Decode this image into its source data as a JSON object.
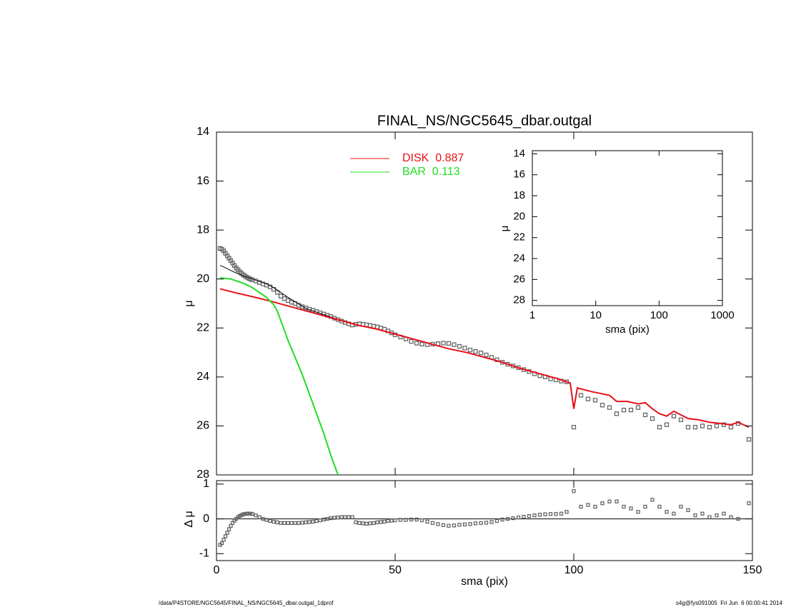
{
  "footer_left": "/data/P4STORE/NGC5645/FINAL_NS/NGC5645_dbar.outgal_1dprof",
  "footer_right": "s4g@fys091005  Fri Jun  6 00:00:41 2014",
  "chart_data": [
    {
      "type": "scatter",
      "title": "FINAL_NS/NGC5645_dbar.outgal",
      "ylabel": "μ",
      "xlim": [
        0,
        150
      ],
      "ylim": [
        28,
        14
      ],
      "yticks": [
        14,
        16,
        18,
        20,
        22,
        24,
        26,
        28
      ],
      "legend": "top",
      "series": [
        {
          "style": "markers",
          "marker": "square",
          "color": "#666666",
          "x": [
            1,
            1.5,
            2,
            2.5,
            3,
            3.5,
            4,
            4.5,
            5,
            5.5,
            6,
            6.5,
            7,
            7.5,
            8,
            8.5,
            9,
            9.5,
            10,
            11,
            12,
            13,
            14,
            15,
            16,
            17,
            18,
            19,
            20,
            21,
            22,
            23,
            24,
            25,
            26,
            27,
            28,
            29,
            30,
            31,
            32,
            33,
            34,
            35,
            36,
            37,
            38,
            39,
            40,
            41,
            42,
            43,
            44,
            45,
            46,
            47,
            48,
            49,
            50,
            51.5,
            53,
            54.5,
            56,
            57.5,
            59,
            60.5,
            62,
            63.5,
            65,
            66.5,
            68,
            69.5,
            71,
            72.5,
            74,
            75.5,
            77,
            78.5,
            80,
            81.5,
            83,
            84.5,
            86,
            87.5,
            89,
            90.5,
            92,
            93.5,
            95,
            96.5,
            98,
            100,
            102,
            104,
            106,
            108,
            110,
            112,
            114,
            116,
            118,
            120,
            122,
            124,
            126,
            128,
            130,
            132,
            134,
            136,
            138,
            140,
            142,
            144,
            146,
            149
          ],
          "values": [
            18.75,
            18.78,
            18.85,
            18.95,
            19.05,
            19.15,
            19.25,
            19.35,
            19.45,
            19.55,
            19.62,
            19.7,
            19.77,
            19.83,
            19.88,
            19.93,
            19.97,
            20.0,
            20.03,
            20.08,
            20.14,
            20.2,
            20.25,
            20.32,
            20.42,
            20.55,
            20.7,
            20.8,
            20.88,
            20.95,
            21.0,
            21.07,
            21.13,
            21.18,
            21.23,
            21.28,
            21.33,
            21.38,
            21.43,
            21.48,
            21.53,
            21.6,
            21.66,
            21.72,
            21.78,
            21.83,
            21.88,
            21.85,
            21.83,
            21.85,
            21.87,
            21.9,
            21.93,
            21.96,
            22.0,
            22.05,
            22.12,
            22.2,
            22.28,
            22.37,
            22.45,
            22.55,
            22.62,
            22.66,
            22.68,
            22.66,
            22.64,
            22.62,
            22.63,
            22.68,
            22.75,
            22.82,
            22.9,
            22.96,
            23.02,
            23.1,
            23.2,
            23.3,
            23.4,
            23.48,
            23.55,
            23.62,
            23.7,
            23.78,
            23.87,
            23.95,
            24.0,
            24.08,
            24.12,
            24.17,
            24.2,
            26.05,
            24.75,
            24.9,
            24.95,
            25.15,
            25.25,
            25.5,
            25.35,
            25.35,
            25.25,
            25.55,
            25.7,
            26.05,
            25.95,
            25.6,
            25.75,
            26.05,
            26.05,
            26.0,
            26.05,
            26.0,
            25.95,
            26.05,
            25.9,
            26.55
          ]
        },
        {
          "style": "line",
          "color": "#000000",
          "x": [
            1,
            2,
            3,
            4,
            5,
            6,
            8,
            10,
            12,
            14,
            16,
            18,
            20,
            25,
            30,
            35,
            40
          ],
          "values": [
            19.45,
            19.5,
            19.58,
            19.65,
            19.72,
            19.78,
            19.9,
            20.0,
            20.1,
            20.2,
            20.35,
            20.55,
            20.75,
            21.2,
            21.45,
            21.7,
            21.9
          ]
        },
        {
          "style": "line",
          "name": "DISK  0.887",
          "color": "#e8101a",
          "x": [
            1,
            5,
            10,
            15,
            20,
            25,
            30,
            35,
            40,
            45,
            50,
            55,
            60,
            65,
            70,
            75,
            80,
            85,
            90,
            95,
            99,
            100,
            101,
            105,
            110,
            112,
            115,
            118,
            120,
            122,
            124,
            126,
            128,
            130,
            132,
            135,
            138,
            141,
            144,
            146,
            149
          ],
          "values": [
            20.4,
            20.55,
            20.72,
            20.9,
            21.1,
            21.3,
            21.5,
            21.7,
            21.9,
            22.05,
            22.25,
            22.45,
            22.65,
            22.85,
            23.0,
            23.2,
            23.4,
            23.65,
            23.85,
            24.05,
            24.25,
            25.3,
            24.45,
            24.6,
            24.75,
            25.0,
            25.0,
            25.1,
            25.05,
            25.3,
            25.5,
            25.6,
            25.4,
            25.55,
            25.7,
            25.75,
            25.85,
            25.9,
            25.95,
            25.85,
            26.05
          ]
        },
        {
          "style": "line",
          "name": "BAR  0.113",
          "color": "#22dd22",
          "x": [
            1,
            4,
            8,
            10,
            12,
            14,
            16,
            17,
            18,
            19,
            20,
            22,
            24,
            26,
            28,
            30,
            32,
            34
          ],
          "values": [
            19.95,
            20.0,
            20.2,
            20.35,
            20.55,
            20.75,
            21.05,
            21.3,
            21.7,
            22.1,
            22.5,
            23.2,
            23.9,
            24.7,
            25.5,
            26.3,
            27.2,
            28.0
          ]
        }
      ]
    },
    {
      "type": "scatter",
      "xlabel": "sma (pix)",
      "ylabel": "Δ μ",
      "xlim": [
        0,
        150
      ],
      "xticks": [
        0,
        50,
        100,
        150
      ],
      "ylim": [
        -1.2,
        1.1
      ],
      "yticks": [
        -1,
        0,
        1
      ],
      "marker": "square",
      "color": "#666666",
      "x": [
        1,
        1.5,
        2,
        2.5,
        3,
        3.5,
        4,
        4.5,
        5,
        5.5,
        6,
        6.5,
        7,
        7.5,
        8,
        8.5,
        9,
        9.5,
        10,
        11,
        12,
        13,
        14,
        15,
        16,
        17,
        18,
        19,
        20,
        21,
        22,
        23,
        24,
        25,
        26,
        27,
        28,
        29,
        30,
        31,
        32,
        33,
        34,
        35,
        36,
        37,
        38,
        39,
        40,
        41,
        42,
        43,
        44,
        45,
        46,
        47,
        48,
        49,
        50,
        51.5,
        53,
        54.5,
        56,
        57.5,
        59,
        60.5,
        62,
        63.5,
        65,
        66.5,
        68,
        69.5,
        71,
        72.5,
        74,
        75.5,
        77,
        78.5,
        80,
        81.5,
        83,
        84.5,
        86,
        87.5,
        89,
        90.5,
        92,
        93.5,
        95,
        96.5,
        98,
        100,
        102,
        104,
        106,
        108,
        110,
        112,
        114,
        116,
        118,
        120,
        122,
        124,
        126,
        128,
        130,
        132,
        134,
        136,
        138,
        140,
        142,
        144,
        146,
        149
      ],
      "values": [
        -0.75,
        -0.7,
        -0.6,
        -0.5,
        -0.4,
        -0.3,
        -0.2,
        -0.12,
        -0.05,
        0.0,
        0.05,
        0.08,
        0.11,
        0.13,
        0.14,
        0.15,
        0.15,
        0.15,
        0.14,
        0.1,
        0.05,
        0.0,
        -0.03,
        -0.06,
        -0.08,
        -0.1,
        -0.12,
        -0.12,
        -0.12,
        -0.12,
        -0.12,
        -0.12,
        -0.11,
        -0.1,
        -0.09,
        -0.08,
        -0.06,
        -0.04,
        -0.02,
        0.0,
        0.02,
        0.03,
        0.04,
        0.05,
        0.05,
        0.05,
        0.05,
        -0.1,
        -0.12,
        -0.13,
        -0.14,
        -0.13,
        -0.12,
        -0.1,
        -0.09,
        -0.08,
        -0.06,
        -0.05,
        -0.04,
        -0.03,
        -0.03,
        -0.02,
        -0.02,
        -0.04,
        -0.08,
        -0.12,
        -0.15,
        -0.18,
        -0.2,
        -0.19,
        -0.17,
        -0.16,
        -0.15,
        -0.13,
        -0.12,
        -0.11,
        -0.09,
        -0.06,
        -0.02,
        0.0,
        0.02,
        0.04,
        0.06,
        0.08,
        0.1,
        0.12,
        0.13,
        0.14,
        0.14,
        0.15,
        0.2,
        0.8,
        0.35,
        0.4,
        0.35,
        0.45,
        0.5,
        0.5,
        0.35,
        0.3,
        0.2,
        0.35,
        0.55,
        0.35,
        0.2,
        0.15,
        0.35,
        0.25,
        0.1,
        0.15,
        0.05,
        0.1,
        0.15,
        0.05,
        0.0,
        0.45
      ]
    },
    {
      "type": "scatter",
      "xlabel": "sma (pix)",
      "ylabel": "μ",
      "xlog": true,
      "xlim": [
        1,
        1000
      ],
      "xticks": [
        1,
        10,
        100,
        1000
      ],
      "ylim": [
        28.5,
        13.7
      ],
      "yticks": [
        14,
        16,
        18,
        20,
        22,
        24,
        26,
        28
      ]
    }
  ]
}
